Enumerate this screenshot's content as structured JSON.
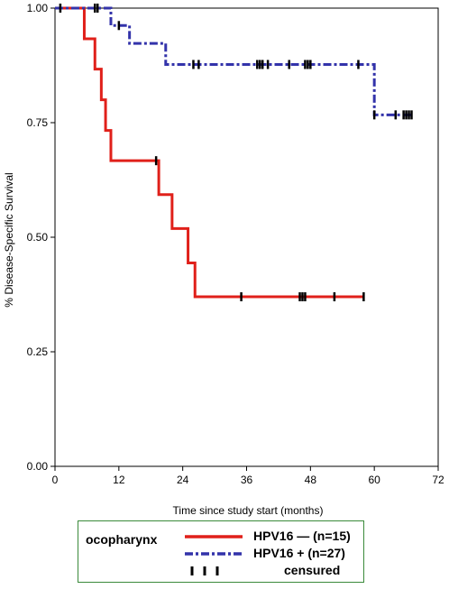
{
  "chart_data": {
    "type": "line",
    "step": true,
    "xlabel": "Time since study start (months)",
    "ylabel": "% Disease-Specific Survival",
    "xlim": [
      0,
      72
    ],
    "ylim": [
      0,
      1
    ],
    "x_ticks": [
      "0",
      "12",
      "24",
      "36",
      "48",
      "60",
      "72"
    ],
    "y_ticks": [
      "0.00",
      "0.25",
      "0.50",
      "0.75",
      "1.00"
    ],
    "grid": false,
    "series": [
      {
        "name": "HPV16 — (n=15)",
        "color": "#e0201a",
        "dash": "solid",
        "x": [
          0,
          5.5,
          7.5,
          8.7,
          9.5,
          10.5,
          19.5,
          22,
          25,
          26.3,
          27.3,
          58
        ],
        "y": [
          1.0,
          0.933,
          0.867,
          0.8,
          0.733,
          0.667,
          0.593,
          0.519,
          0.444,
          0.37,
          0.37,
          0.37
        ],
        "censored_x": [
          19,
          35,
          46,
          46.5,
          47,
          52.5,
          58
        ]
      },
      {
        "name": "HPV16 + (n=27)",
        "color": "#3333aa",
        "dash": "dashdot",
        "x": [
          0,
          10.5,
          14,
          20.8,
          60,
          67
        ],
        "y": [
          1.0,
          0.962,
          0.923,
          0.877,
          0.767,
          0.767
        ],
        "censored_x": [
          1,
          7.5,
          8,
          12,
          26,
          27,
          38,
          38.5,
          39,
          40,
          44,
          47,
          47.5,
          48,
          57,
          60,
          64,
          65.5,
          66,
          66.5,
          67
        ]
      }
    ],
    "legend": {
      "title": "ocopharynx",
      "position": "bottom",
      "censored_label": "censured"
    }
  }
}
